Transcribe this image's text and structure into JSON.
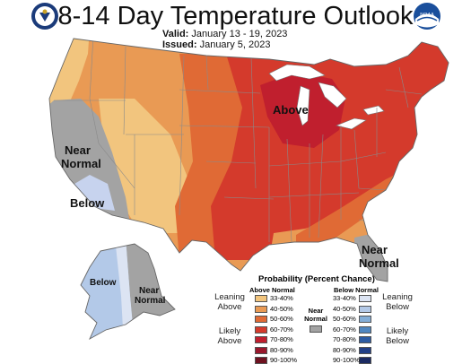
{
  "header": {
    "title": "8-14 Day Temperature Outlook",
    "valid_label": "Valid:",
    "valid_dates": "January 13 - 19, 2023",
    "issued_label": "Issued:",
    "issued_date": "January 5, 2023"
  },
  "logos": {
    "left": "doc-seal",
    "right_text": "NOAA"
  },
  "map_labels": {
    "west_near_normal_1": "Near",
    "west_near_normal_2": "Normal",
    "west_below": "Below",
    "above": "Above",
    "se_near_normal_1": "Near",
    "se_near_normal_2": "Normal",
    "alaska_below": "Below",
    "alaska_near_normal_1": "Near",
    "alaska_near_normal_2": "Normal"
  },
  "legend": {
    "title": "Probability (Percent Chance)",
    "above_header": "Above Normal",
    "below_header": "Below Normal",
    "near_header_1": "Near",
    "near_header_2": "Normal",
    "leaning_above": [
      "Leaning",
      "Above"
    ],
    "likely_above": [
      "Likely",
      "Above"
    ],
    "leaning_below": [
      "Leaning",
      "Below"
    ],
    "likely_below": [
      "Likely",
      "Below"
    ],
    "above_bins": [
      "33-40%",
      "40-50%",
      "50-60%",
      "60-70%",
      "70-80%",
      "80-90%",
      "90-100%"
    ],
    "below_bins": [
      "33-40%",
      "40-50%",
      "50-60%",
      "60-70%",
      "70-80%",
      "80-90%",
      "90-100%"
    ],
    "above_colors": [
      "#f2c57e",
      "#e99a54",
      "#e06a35",
      "#d43a2c",
      "#c01f2e",
      "#99182c",
      "#6e1220"
    ],
    "below_colors": [
      "#dce4f3",
      "#b3c9e8",
      "#84aed8",
      "#4f86c0",
      "#2c5ba3",
      "#213f87",
      "#1b2a62"
    ],
    "near_color": "#a3a3a3"
  }
}
